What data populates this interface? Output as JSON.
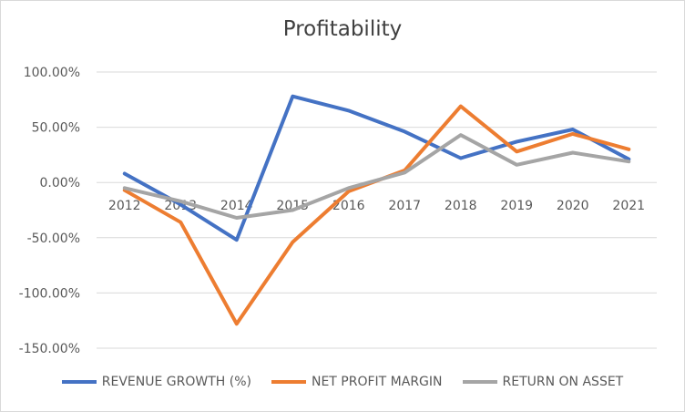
{
  "chart_data": {
    "type": "line",
    "title": "Profitability",
    "categories": [
      "2012",
      "2013",
      "2014",
      "2015",
      "2016",
      "2017",
      "2018",
      "2019",
      "2020",
      "2021"
    ],
    "y_ticks": [
      "100.00%",
      "50.00%",
      "0.00%",
      "-50.00%",
      "-100.00%",
      "-150.00%"
    ],
    "ylim": [
      -150,
      100
    ],
    "y_unit": "%",
    "grid": true,
    "legend_position": "bottom",
    "series": [
      {
        "name": "REVENUE GROWTH (%)",
        "color": "#4472c4",
        "values": [
          8,
          -20,
          -52,
          78,
          65,
          46,
          22,
          37,
          48,
          21
        ]
      },
      {
        "name": "NET PROFIT MARGIN",
        "color": "#ed7d31",
        "values": [
          -7,
          -36,
          -128,
          -54,
          -8,
          11,
          69,
          28,
          44,
          30
        ]
      },
      {
        "name": "RETURN ON ASSET",
        "color": "#a5a5a5",
        "values": [
          -5,
          -17,
          -32,
          -25,
          -5,
          9,
          43,
          16,
          27,
          19
        ]
      }
    ]
  }
}
